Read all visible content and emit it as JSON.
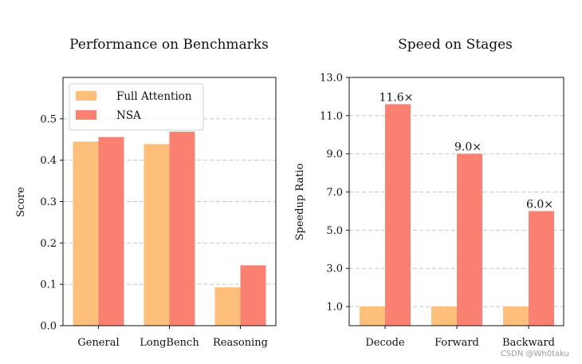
{
  "colors": {
    "full_attention": "#fdbf7a",
    "nsa": "#fa8072",
    "grid": "#c8c8c8",
    "axis": "#111111"
  },
  "watermark": "CSDN @Wh0taku",
  "chart_data": [
    {
      "type": "bar",
      "title": "Performance on Benchmarks",
      "xlabel": "",
      "ylabel": "Score",
      "categories": [
        "General",
        "LongBench",
        "Reasoning"
      ],
      "series": [
        {
          "name": "Full Attention",
          "values": [
            0.445,
            0.439,
            0.093
          ]
        },
        {
          "name": "NSA",
          "values": [
            0.456,
            0.469,
            0.146
          ]
        }
      ],
      "ylim": [
        0,
        0.6
      ],
      "yticks": [
        0.0,
        0.1,
        0.2,
        0.3,
        0.4,
        0.5
      ],
      "ytick_labels": [
        "0.0",
        "0.1",
        "0.2",
        "0.3",
        "0.4",
        "0.5"
      ],
      "grid": true,
      "legend": "top-left"
    },
    {
      "type": "bar",
      "title": "Speed on Stages",
      "xlabel": "",
      "ylabel": "Speedup Ratio",
      "categories": [
        "Decode",
        "Forward",
        "Backward"
      ],
      "series": [
        {
          "name": "Full Attention",
          "values": [
            1.0,
            1.0,
            1.0
          ]
        },
        {
          "name": "NSA",
          "values": [
            11.6,
            9.0,
            6.0
          ]
        }
      ],
      "data_labels": [
        "11.6×",
        "9.0×",
        "6.0×"
      ],
      "ylim": [
        0,
        13.0
      ],
      "yticks": [
        1.0,
        3.0,
        5.0,
        7.0,
        9.0,
        11.0,
        13.0
      ],
      "ytick_labels": [
        "1.0",
        "3.0",
        "5.0",
        "7.0",
        "9.0",
        "11.0",
        "13.0"
      ],
      "grid": true,
      "legend": "none"
    }
  ]
}
